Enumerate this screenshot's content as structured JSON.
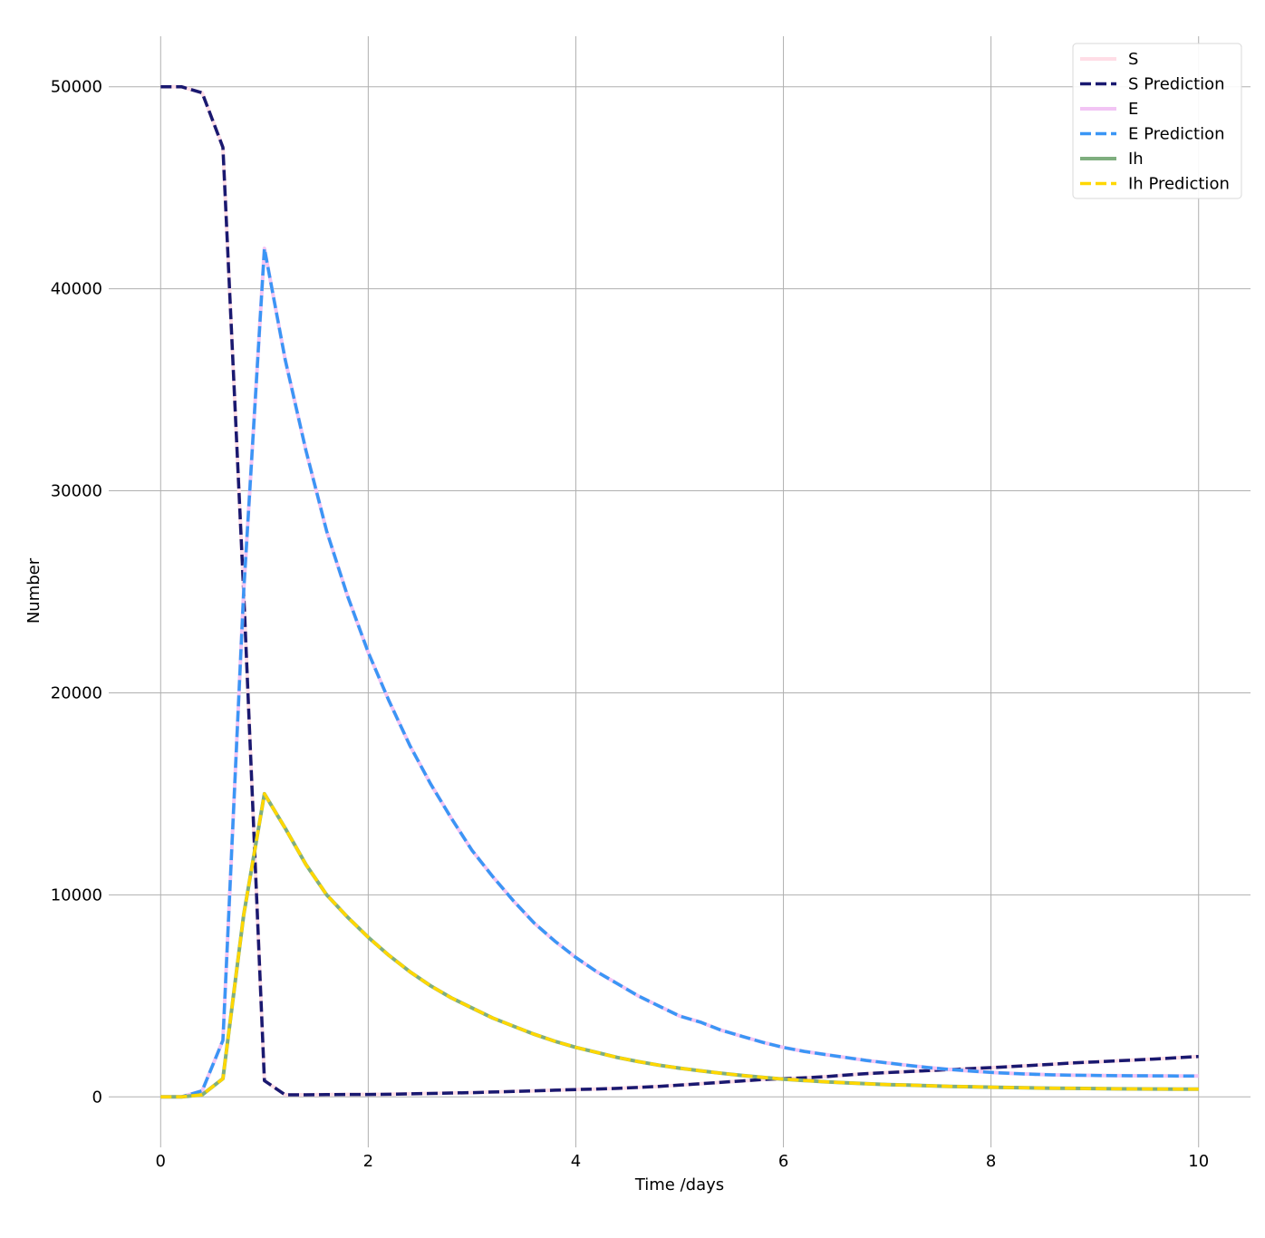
{
  "chart_data": {
    "type": "line",
    "xlabel": "Time /days",
    "ylabel": "Number",
    "xlim": [
      -0.5,
      10.5
    ],
    "ylim": [
      -2500,
      52500
    ],
    "xticks": [
      0,
      2,
      4,
      6,
      8,
      10
    ],
    "yticks": [
      0,
      10000,
      20000,
      30000,
      40000,
      50000
    ],
    "xtick_labels": [
      "0",
      "2",
      "4",
      "6",
      "8",
      "10"
    ],
    "ytick_labels": [
      "0",
      "10000",
      "20000",
      "30000",
      "40000",
      "50000"
    ],
    "grid": true,
    "legend_position": "top-right",
    "x": [
      0,
      0.2,
      0.4,
      0.6,
      0.8,
      1.0,
      1.2,
      1.4,
      1.6,
      1.8,
      2.0,
      2.2,
      2.4,
      2.6,
      2.8,
      3.0,
      3.2,
      3.4,
      3.6,
      3.8,
      4.0,
      4.2,
      4.4,
      4.6,
      4.8,
      5.0,
      5.2,
      5.4,
      5.6,
      5.8,
      6.0,
      6.2,
      6.4,
      6.6,
      6.8,
      7.0,
      7.2,
      7.4,
      7.6,
      7.8,
      8.0,
      8.2,
      8.4,
      8.6,
      8.8,
      9.0,
      9.2,
      9.4,
      9.6,
      9.8,
      10.0
    ],
    "series": [
      {
        "name": "S",
        "color": "#ffdde6",
        "style": "solid",
        "values": [
          50000,
          50000,
          49700,
          47000,
          25000,
          800,
          100,
          100,
          110,
          120,
          120,
          130,
          150,
          170,
          190,
          210,
          240,
          270,
          300,
          330,
          360,
          390,
          420,
          470,
          520,
          580,
          650,
          720,
          790,
          860,
          900,
          940,
          1000,
          1080,
          1150,
          1200,
          1250,
          1300,
          1350,
          1400,
          1450,
          1500,
          1560,
          1620,
          1680,
          1730,
          1780,
          1830,
          1880,
          1940,
          2000
        ]
      },
      {
        "name": "S Prediction",
        "color": "#191970",
        "style": "dashed",
        "values": [
          50000,
          50000,
          49700,
          47000,
          25000,
          800,
          100,
          100,
          110,
          120,
          120,
          130,
          150,
          170,
          190,
          210,
          240,
          270,
          300,
          330,
          360,
          390,
          420,
          470,
          520,
          580,
          650,
          720,
          790,
          860,
          900,
          940,
          1000,
          1080,
          1150,
          1200,
          1250,
          1300,
          1350,
          1400,
          1450,
          1500,
          1560,
          1620,
          1680,
          1730,
          1780,
          1830,
          1880,
          1940,
          2000
        ]
      },
      {
        "name": "E",
        "color": "#f2c4f4",
        "style": "solid",
        "values": [
          0,
          0,
          300,
          2800,
          25000,
          42000,
          36500,
          32000,
          28000,
          24800,
          22000,
          19600,
          17400,
          15500,
          13800,
          12200,
          10900,
          9700,
          8600,
          7700,
          6900,
          6200,
          5600,
          5000,
          4500,
          4000,
          3700,
          3300,
          3000,
          2700,
          2450,
          2250,
          2100,
          1950,
          1800,
          1680,
          1560,
          1450,
          1360,
          1280,
          1210,
          1160,
          1120,
          1090,
          1070,
          1060,
          1050,
          1045,
          1040,
          1035,
          1030
        ]
      },
      {
        "name": "E Prediction",
        "color": "#3a96f5",
        "style": "dashed",
        "values": [
          0,
          0,
          300,
          2800,
          25000,
          42000,
          36500,
          32000,
          28000,
          24800,
          22000,
          19600,
          17400,
          15500,
          13800,
          12200,
          10900,
          9700,
          8600,
          7700,
          6900,
          6200,
          5600,
          5000,
          4500,
          4000,
          3700,
          3300,
          3000,
          2700,
          2450,
          2250,
          2100,
          1950,
          1800,
          1680,
          1560,
          1450,
          1360,
          1280,
          1210,
          1160,
          1120,
          1090,
          1070,
          1060,
          1050,
          1045,
          1040,
          1035,
          1030
        ]
      },
      {
        "name": "Ih",
        "color": "#7fae7f",
        "style": "solid",
        "values": [
          0,
          0,
          100,
          900,
          9000,
          15000,
          13300,
          11500,
          10000,
          8900,
          7900,
          7000,
          6200,
          5500,
          4900,
          4400,
          3900,
          3500,
          3100,
          2750,
          2450,
          2200,
          1950,
          1750,
          1570,
          1420,
          1290,
          1170,
          1060,
          970,
          880,
          810,
          750,
          700,
          650,
          610,
          580,
          550,
          520,
          500,
          480,
          460,
          445,
          430,
          420,
          410,
          400,
          395,
          390,
          385,
          380
        ]
      },
      {
        "name": "Ih Prediction",
        "color": "#ffd700",
        "style": "dashed",
        "values": [
          0,
          0,
          100,
          900,
          9000,
          15000,
          13300,
          11500,
          10000,
          8900,
          7900,
          7000,
          6200,
          5500,
          4900,
          4400,
          3900,
          3500,
          3100,
          2750,
          2450,
          2200,
          1950,
          1750,
          1570,
          1420,
          1290,
          1170,
          1060,
          970,
          880,
          810,
          750,
          700,
          650,
          610,
          580,
          550,
          520,
          500,
          480,
          460,
          445,
          430,
          420,
          410,
          400,
          395,
          390,
          385,
          380
        ]
      }
    ]
  }
}
